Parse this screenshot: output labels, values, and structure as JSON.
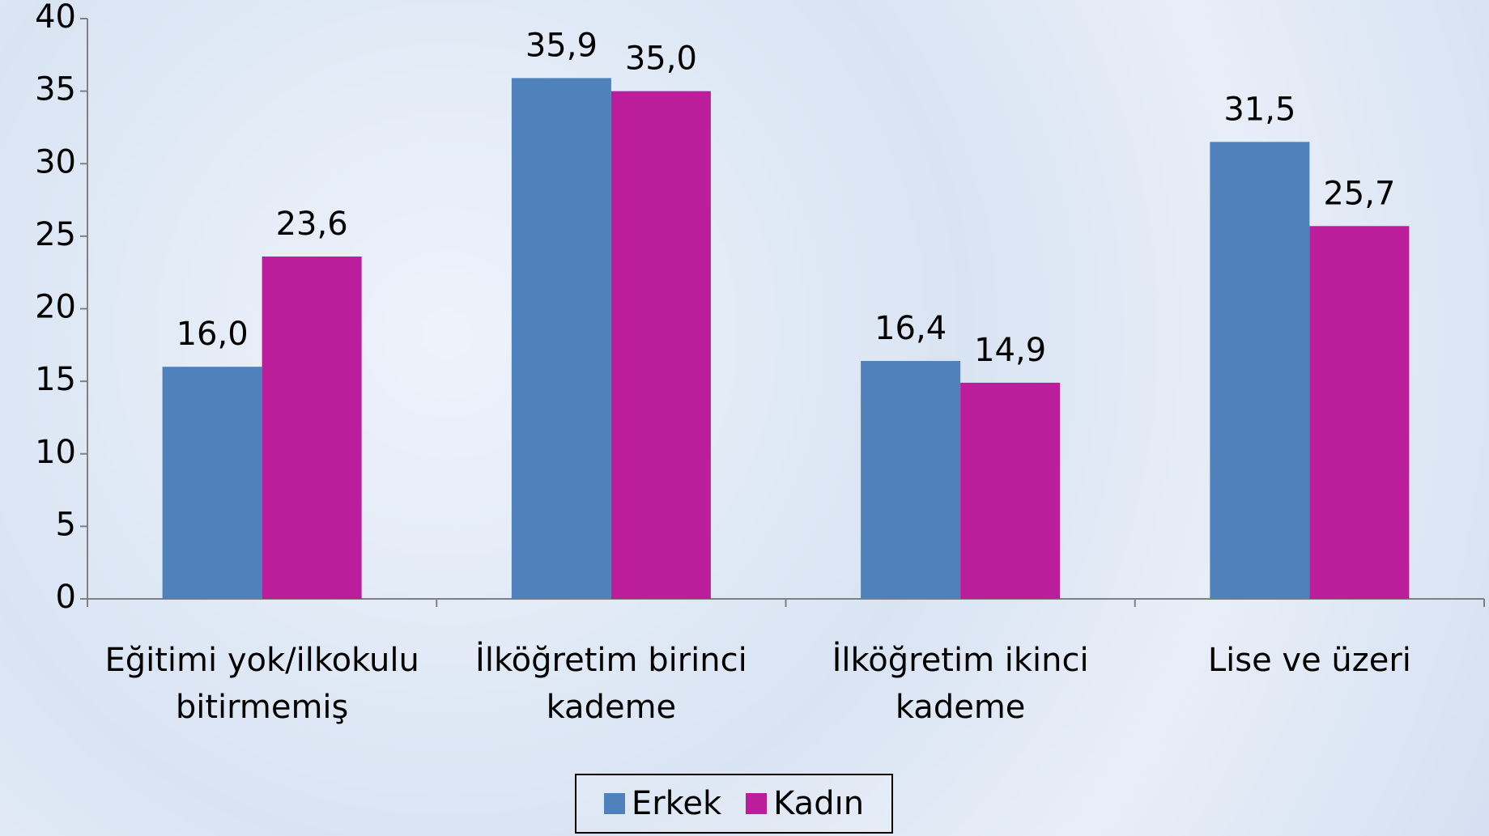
{
  "chart_data": {
    "type": "bar",
    "categories": [
      "Eğitimi yok/ilkokulu bitirmemiş",
      "İlköğretim birinci kademe",
      "İlköğretim ikinci kademe",
      "Lise ve üzeri"
    ],
    "series": [
      {
        "name": "Erkek",
        "color": "#4f81bd",
        "values": [
          16.0,
          35.9,
          16.4,
          31.5
        ],
        "value_labels": [
          "16,0",
          "35,9",
          "16,4",
          "31,5"
        ]
      },
      {
        "name": "Kadın",
        "color": "#bc1d9b",
        "values": [
          23.6,
          35.0,
          14.9,
          25.7
        ],
        "value_labels": [
          "23,6",
          "35,0",
          "14,9",
          "25,7"
        ]
      }
    ],
    "ylim": [
      0,
      40
    ],
    "yticks": [
      0,
      5,
      10,
      15,
      20,
      25,
      30,
      35,
      40
    ],
    "grid": false,
    "legend": "bottom"
  }
}
